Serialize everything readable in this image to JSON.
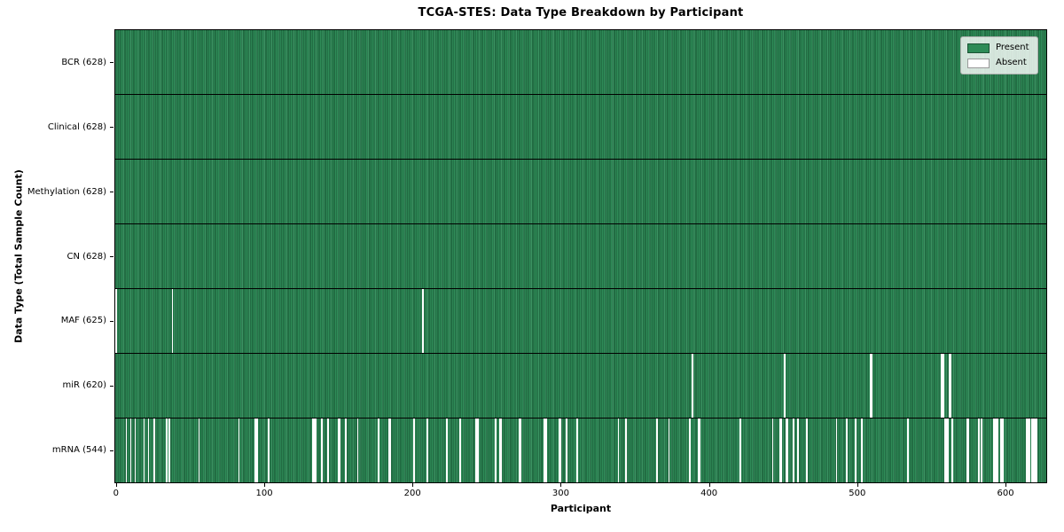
{
  "chart_data": {
    "type": "heatmap",
    "title": "TCGA-STES: Data Type Breakdown by Participant",
    "xlabel": "Participant",
    "ylabel": "Data Type (Total Sample Count)",
    "x_ticks": [
      0,
      100,
      200,
      300,
      400,
      500,
      600
    ],
    "x_range": [
      0,
      628
    ],
    "n_participants": 628,
    "grid": "black row separator lines between data-type rows",
    "legend": {
      "position": "upper right",
      "entries": [
        {
          "label": "Present",
          "color": "#2e8b57"
        },
        {
          "label": "Absent",
          "color": "#ffffff"
        }
      ]
    },
    "colors": {
      "present": "#2e8b57",
      "absent": "#ffffff",
      "bar_edge": "#17502e",
      "separator": "#000000",
      "background": "#ffffff"
    },
    "rows": [
      {
        "data_type": "BCR",
        "label": "BCR (628)",
        "present_count": 628,
        "absent_participants": []
      },
      {
        "data_type": "Clinical",
        "label": "Clinical (628)",
        "present_count": 628,
        "absent_participants": []
      },
      {
        "data_type": "Methylation",
        "label": "Methylation (628)",
        "present_count": 628,
        "absent_participants": []
      },
      {
        "data_type": "CN",
        "label": "CN (628)",
        "present_count": 628,
        "absent_participants": []
      },
      {
        "data_type": "MAF",
        "label": "MAF (625)",
        "present_count": 625,
        "absent_participants": [
          0,
          38,
          207
        ]
      },
      {
        "data_type": "miR",
        "label": "miR (620)",
        "present_count": 620,
        "absent_participants": [
          389,
          451,
          509,
          510,
          557,
          558,
          562,
          563
        ]
      },
      {
        "data_type": "mRNA",
        "label": "mRNA (544)",
        "present_count": 544,
        "absent_participants": [
          7,
          10,
          13,
          19,
          22,
          26,
          34,
          36,
          56,
          83,
          94,
          95,
          103,
          133,
          134,
          135,
          139,
          143,
          150,
          151,
          155,
          163,
          177,
          184,
          185,
          201,
          210,
          223,
          232,
          243,
          244,
          256,
          259,
          260,
          272,
          273,
          289,
          290,
          299,
          300,
          304,
          311,
          339,
          344,
          365,
          373,
          387,
          393,
          394,
          421,
          443,
          448,
          449,
          452,
          453,
          457,
          460,
          466,
          486,
          493,
          499,
          503,
          534,
          559,
          560,
          561,
          564,
          574,
          575,
          582,
          584,
          592,
          593,
          594,
          595,
          597,
          598,
          614,
          615,
          616,
          618,
          619,
          620,
          621
        ]
      }
    ]
  }
}
